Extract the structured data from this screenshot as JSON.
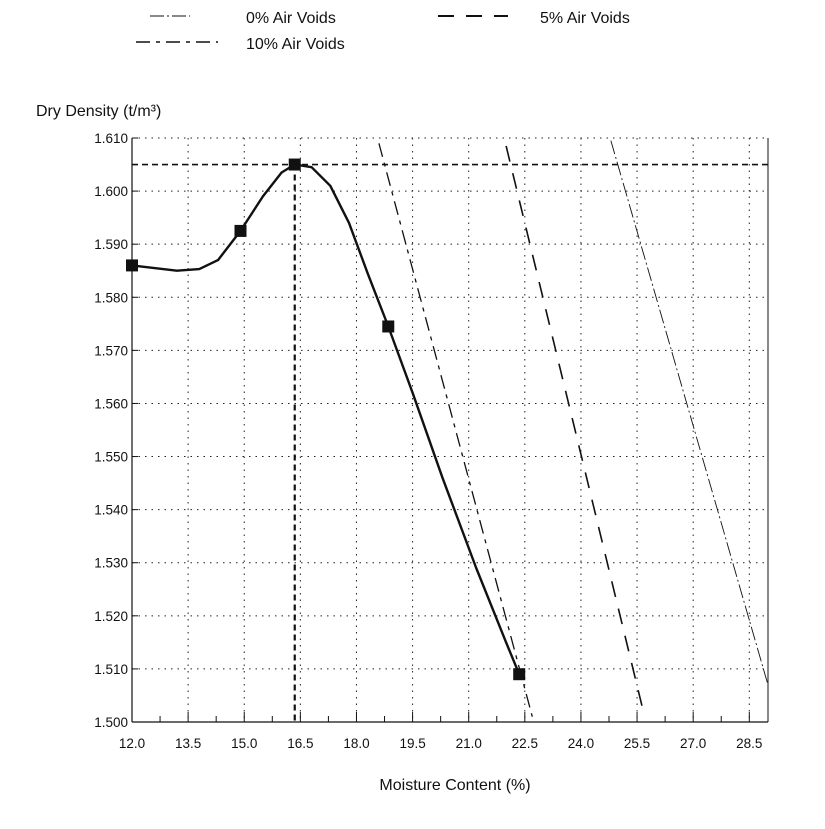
{
  "chart_data": {
    "type": "line",
    "title": "",
    "xlabel": "Moisture Content (%)",
    "ylabel": "Dry Density (t/m³)",
    "xlim": [
      12.0,
      29.0
    ],
    "ylim": [
      1.5,
      1.61
    ],
    "x_ticks": [
      "12.0",
      "13.5",
      "15.0",
      "16.5",
      "18.0",
      "19.5",
      "21.0",
      "22.5",
      "24.0",
      "25.5",
      "27.0",
      "28.5"
    ],
    "y_ticks": [
      "1.500",
      "1.510",
      "1.520",
      "1.530",
      "1.540",
      "1.550",
      "1.560",
      "1.570",
      "1.580",
      "1.590",
      "1.600",
      "1.610"
    ],
    "grid": true,
    "legend_position": "top",
    "legend": [
      {
        "label": "0% Air Voids",
        "style": "dash-dot-thin"
      },
      {
        "label": "5% Air Voids",
        "style": "long-dash"
      },
      {
        "label": "10% Air Voids",
        "style": "dash-dot"
      }
    ],
    "series": [
      {
        "style": "curve",
        "points": [
          [
            12.0,
            1.586
          ],
          [
            14.9,
            1.5925
          ],
          [
            16.35,
            1.605
          ],
          [
            18.85,
            1.5745
          ],
          [
            22.35,
            1.509
          ]
        ],
        "curve": [
          [
            12.0,
            1.586
          ],
          [
            12.6,
            1.5855
          ],
          [
            13.2,
            1.585
          ],
          [
            13.8,
            1.5853
          ],
          [
            14.3,
            1.587
          ],
          [
            14.9,
            1.5925
          ],
          [
            15.5,
            1.599
          ],
          [
            16.0,
            1.6035
          ],
          [
            16.35,
            1.605
          ],
          [
            16.8,
            1.6045
          ],
          [
            17.3,
            1.601
          ],
          [
            17.8,
            1.594
          ],
          [
            18.3,
            1.5845
          ],
          [
            18.85,
            1.5745
          ],
          [
            19.5,
            1.562
          ],
          [
            20.3,
            1.546
          ],
          [
            21.2,
            1.529
          ],
          [
            22.0,
            1.515
          ],
          [
            22.35,
            1.509
          ]
        ]
      },
      {
        "name": "0% Air Voids",
        "points": [
          [
            24.8,
            1.6095
          ],
          [
            29.0,
            1.507
          ]
        ]
      },
      {
        "name": "5% Air Voids",
        "points": [
          [
            22.0,
            1.6085
          ],
          [
            25.65,
            1.5025
          ]
        ]
      },
      {
        "name": "10% Air Voids",
        "points": [
          [
            18.6,
            1.609
          ],
          [
            22.7,
            1.501
          ]
        ]
      }
    ],
    "optimum": {
      "x": 16.35,
      "y": 1.605
    }
  }
}
